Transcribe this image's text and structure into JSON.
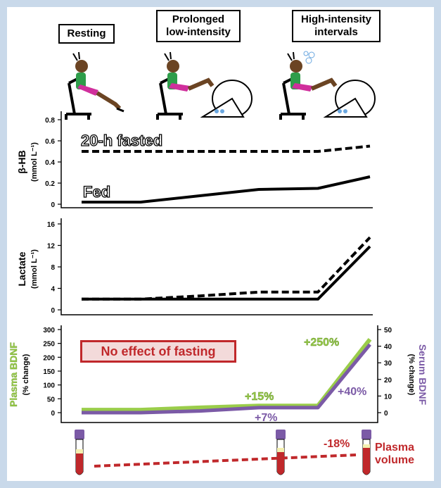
{
  "stages": [
    {
      "label": "Resting"
    },
    {
      "label": "Prolonged\nlow-intensity"
    },
    {
      "label": "High-intensity\nintervals"
    }
  ],
  "panels": {
    "bhb": {
      "ylabel": "β-HB",
      "yunit": "(mmol L⁻¹)",
      "yticks": [
        "0.8",
        "0.6",
        "0.4",
        "0.2",
        "0"
      ],
      "series_labels": [
        "20-h fasted",
        "Fed"
      ]
    },
    "lactate": {
      "ylabel": "Lactate",
      "yunit": "(mmol L⁻¹)",
      "yticks": [
        "16",
        "12",
        "8",
        "4",
        "0"
      ]
    },
    "bdnf": {
      "ylabel_left": "Plasma BDNF",
      "yunit_left": "(% change)",
      "yticks_left": [
        "300",
        "250",
        "200",
        "150",
        "100",
        "50",
        "0"
      ],
      "ylabel_right": "Serum BDNF",
      "yunit_right": "(% change)",
      "yticks_right": [
        "50",
        "40",
        "30",
        "20",
        "10",
        "0"
      ],
      "callout": "No effect of fasting",
      "annotations": {
        "plasma_mid": "+15%",
        "serum_mid": "+7%",
        "plasma_end": "+250%",
        "serum_end": "+40%"
      }
    }
  },
  "plasma_volume": {
    "label": "Plasma\nvolume",
    "change": "-18%"
  },
  "colors": {
    "background": "#c9d9ea",
    "plasma_bdnf": "#9acd4a",
    "serum_bdnf": "#7b5aa6",
    "plasma_volume": "#c0282b",
    "callout_border": "#c0282b",
    "callout_fill": "#f3dada",
    "skin": "#6b4423",
    "shirt": "#2e9d4a",
    "shorts": "#d02f9c"
  },
  "chart_data": [
    {
      "type": "line",
      "name": "beta-HB",
      "x": [
        0,
        1,
        2,
        3,
        4,
        5
      ],
      "ylim": [
        0,
        0.8
      ],
      "series": [
        {
          "name": "20-h fasted",
          "style": "dashed",
          "values": [
            0.5,
            0.5,
            0.5,
            0.5,
            0.5,
            0.55
          ]
        },
        {
          "name": "Fed",
          "style": "solid",
          "values": [
            0.02,
            0.02,
            0.08,
            0.14,
            0.15,
            0.26
          ]
        }
      ]
    },
    {
      "type": "line",
      "name": "Lactate",
      "x": [
        0,
        1,
        2,
        3,
        4,
        5
      ],
      "ylim": [
        0,
        16
      ],
      "series": [
        {
          "name": "20-h fasted",
          "style": "dashed",
          "values": [
            2,
            2,
            2.6,
            3.3,
            3.3,
            13.5
          ]
        },
        {
          "name": "Fed",
          "style": "solid",
          "values": [
            2,
            2,
            2,
            2,
            2,
            11.8
          ]
        }
      ]
    },
    {
      "type": "line",
      "name": "BDNF",
      "x": [
        0,
        1,
        2,
        3,
        4,
        5
      ],
      "series": [
        {
          "name": "Plasma BDNF",
          "axis": "left",
          "ylim": [
            0,
            300
          ],
          "values": [
            10,
            10,
            18,
            25,
            25,
            265
          ]
        },
        {
          "name": "Serum BDNF",
          "axis": "right",
          "ylim": [
            0,
            50
          ],
          "values": [
            0,
            0,
            1,
            3,
            3,
            41
          ]
        }
      ]
    }
  ]
}
